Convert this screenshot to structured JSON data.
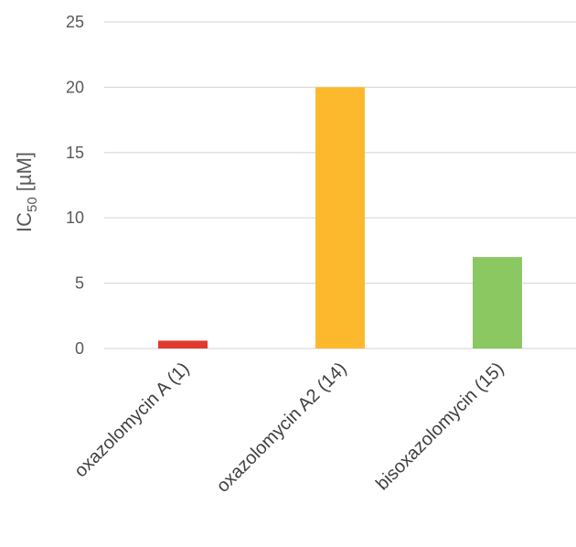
{
  "chart_data": {
    "type": "bar",
    "categories": [
      "oxazolomycin A (1)",
      "oxazolomycin A2 (14)",
      "bisoxazolomycin (15)"
    ],
    "values": [
      0.6,
      20,
      7
    ],
    "colors": [
      "#e03a2f",
      "#fdb92d",
      "#8bc862"
    ],
    "ylabel": {
      "main": "IC",
      "sub": "50",
      "unit": " [µM]"
    },
    "yticks": [
      "0",
      "5",
      "10",
      "15",
      "20",
      "25"
    ],
    "ylim": [
      0,
      25
    ],
    "grid": true,
    "legend": "none"
  }
}
